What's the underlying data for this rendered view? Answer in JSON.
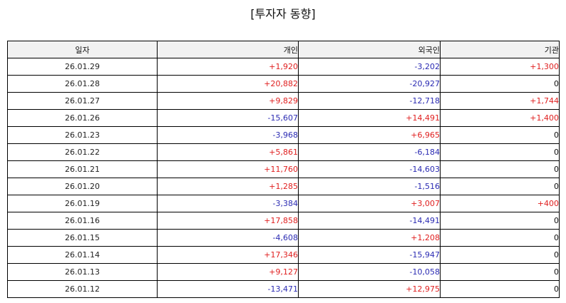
{
  "title": "[투자자 동향]",
  "columns": [
    "일자",
    "개인",
    "외국인",
    "기관"
  ],
  "colors": {
    "positive": "#e02020",
    "negative": "#2b2bb3",
    "zero": "#111111"
  },
  "rows": [
    [
      "26.01.29",
      "+1,920",
      "-3,202",
      "+1,300"
    ],
    [
      "26.01.28",
      "+20,882",
      "-20,927",
      "0"
    ],
    [
      "26.01.27",
      "+9,829",
      "-12,718",
      "+1,744"
    ],
    [
      "26.01.26",
      "-15,607",
      "+14,491",
      "+1,400"
    ],
    [
      "26.01.23",
      "-3,968",
      "+6,965",
      "0"
    ],
    [
      "26.01.22",
      "+5,861",
      "-6,184",
      "0"
    ],
    [
      "26.01.21",
      "+11,760",
      "-14,603",
      "0"
    ],
    [
      "26.01.20",
      "+1,285",
      "-1,516",
      "0"
    ],
    [
      "26.01.19",
      "-3,384",
      "+3,007",
      "+400"
    ],
    [
      "26.01.16",
      "+17,858",
      "-14,491",
      "0"
    ],
    [
      "26.01.15",
      "-4,608",
      "+1,208",
      "0"
    ],
    [
      "26.01.14",
      "+17,346",
      "-15,947",
      "0"
    ],
    [
      "26.01.13",
      "+9,127",
      "-10,058",
      "0"
    ],
    [
      "26.01.12",
      "-13,471",
      "+12,975",
      "0"
    ]
  ]
}
